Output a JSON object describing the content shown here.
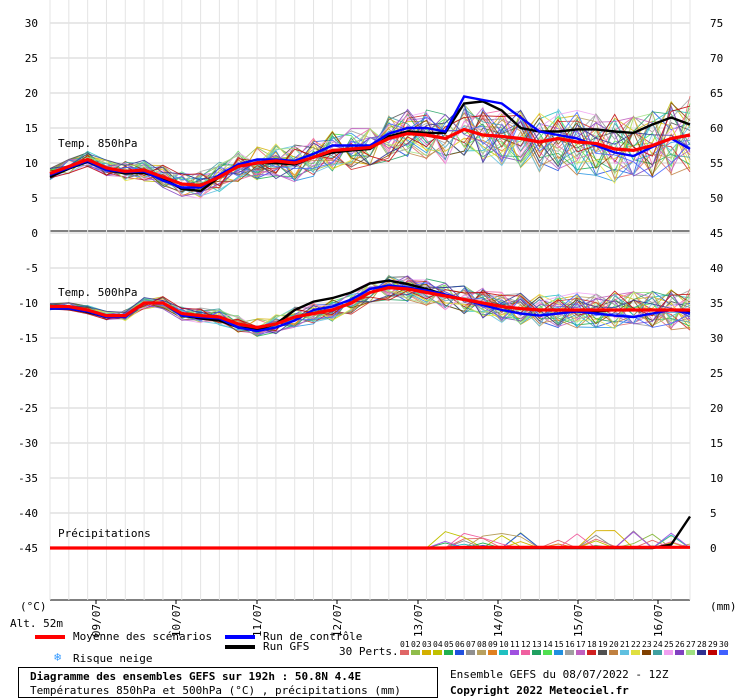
{
  "chart_data": [
    {
      "type": "line",
      "panel": "top",
      "label": "Temp. 850hPa",
      "left_axis_ticks": [
        "30",
        "25",
        "20",
        "15",
        "10",
        "5",
        "0"
      ],
      "right_axis_ticks": [
        "75",
        "70",
        "65",
        "60",
        "55",
        "50",
        "45"
      ],
      "ylim": [
        0,
        30
      ],
      "series": [
        {
          "name": "Moyenne des scénarios",
          "color": "#ff0000",
          "values": [
            8.5,
            9.5,
            10.5,
            9.3,
            8.8,
            9.0,
            8.0,
            7.0,
            6.8,
            8.0,
            9.5,
            10.0,
            10.3,
            10.0,
            10.8,
            11.8,
            12.0,
            12.2,
            13.5,
            14.2,
            14.0,
            13.5,
            14.8,
            14.0,
            13.8,
            13.5,
            13.0,
            13.5,
            13.0,
            12.8,
            12.0,
            11.8,
            12.5,
            13.5,
            14.0
          ]
        },
        {
          "name": "Run de contrôle",
          "color": "#0000ff",
          "values": [
            8.3,
            9.3,
            10.3,
            9.0,
            8.7,
            8.8,
            7.5,
            6.5,
            6.5,
            8.3,
            9.8,
            10.5,
            10.5,
            10.3,
            11.3,
            12.5,
            12.5,
            12.5,
            14.2,
            15.0,
            15.0,
            14.5,
            19.5,
            19.0,
            18.5,
            16.5,
            14.5,
            14.0,
            13.5,
            12.5,
            11.5,
            11.0,
            12.3,
            13.5,
            12.0
          ]
        },
        {
          "name": "Run GFS",
          "color": "#000000",
          "values": [
            8.0,
            9.2,
            10.2,
            9.0,
            8.5,
            8.6,
            7.8,
            6.3,
            6.0,
            8.0,
            9.5,
            10.0,
            10.0,
            9.8,
            10.8,
            11.5,
            11.8,
            12.0,
            13.8,
            14.5,
            14.3,
            14.3,
            18.5,
            18.8,
            17.5,
            15.0,
            14.5,
            14.5,
            14.8,
            14.8,
            14.5,
            14.3,
            15.5,
            16.5,
            15.5
          ]
        }
      ]
    },
    {
      "type": "line",
      "panel": "middle",
      "label": "Temp. 500hPa",
      "left_axis_ticks": [
        "-5",
        "-10",
        "-15",
        "-20",
        "-25",
        "-30",
        "-35",
        "-40",
        "-45"
      ],
      "right_axis_ticks": [
        "40",
        "35",
        "30",
        "25",
        "20",
        "15",
        "10",
        "5",
        "0"
      ],
      "series": [
        {
          "name": "Moyenne des scénarios",
          "color": "#ff0000",
          "values": [
            -10.5,
            -10.5,
            -11.0,
            -11.8,
            -11.8,
            -10.0,
            -10.0,
            -11.5,
            -11.8,
            -12.0,
            -13.0,
            -13.5,
            -13.0,
            -12.0,
            -11.5,
            -11.0,
            -10.0,
            -8.5,
            -7.8,
            -8.0,
            -8.5,
            -9.0,
            -9.5,
            -10.0,
            -10.5,
            -10.8,
            -11.0,
            -11.0,
            -11.0,
            -11.0,
            -11.0,
            -11.0,
            -11.0,
            -11.0,
            -11.0
          ]
        },
        {
          "name": "Run de contrôle",
          "color": "#0000ff",
          "values": [
            -10.8,
            -10.8,
            -11.2,
            -12.0,
            -12.0,
            -10.0,
            -10.0,
            -11.8,
            -12.0,
            -12.2,
            -13.5,
            -14.0,
            -13.5,
            -12.5,
            -11.0,
            -10.5,
            -9.5,
            -8.0,
            -7.5,
            -7.8,
            -8.2,
            -8.8,
            -9.5,
            -10.3,
            -11.0,
            -11.5,
            -11.8,
            -11.5,
            -11.2,
            -11.5,
            -11.8,
            -12.0,
            -11.5,
            -11.0,
            -11.5
          ]
        },
        {
          "name": "Run GFS",
          "color": "#000000",
          "values": [
            -10.8,
            -10.8,
            -11.3,
            -12.0,
            -11.8,
            -10.0,
            -10.0,
            -11.8,
            -12.2,
            -12.5,
            -13.5,
            -13.8,
            -13.0,
            -11.0,
            -9.8,
            -9.3,
            -8.5,
            -7.2,
            -6.8,
            -7.3,
            -8.0,
            -8.8,
            -9.5,
            -10.0,
            -10.5,
            -10.8,
            -11.0,
            -11.0,
            -11.0,
            -11.2,
            -11.0,
            -11.0,
            -11.0,
            -11.0,
            -11.2
          ]
        }
      ]
    },
    {
      "type": "line",
      "panel": "bottom",
      "label": "Précipitations",
      "unit": "mm",
      "series": [
        {
          "name": "Moyenne des scénarios",
          "color": "#ff0000",
          "values": [
            0,
            0,
            0,
            0,
            0,
            0,
            0,
            0,
            0,
            0,
            0,
            0,
            0,
            0,
            0,
            0,
            0,
            0,
            0,
            0,
            0,
            0,
            0.1,
            0.1,
            0.1,
            0.1,
            0.1,
            0.1,
            0.1,
            0.1,
            0.1,
            0.1,
            0.1,
            0.1,
            0.1
          ]
        },
        {
          "name": "Run GFS",
          "color": "#000000",
          "values": [
            0,
            0,
            0,
            0,
            0,
            0,
            0,
            0,
            0,
            0,
            0,
            0,
            0,
            0,
            0,
            0,
            0,
            0,
            0,
            0,
            0,
            0,
            0,
            0,
            0,
            0,
            0,
            0,
            0,
            0,
            0,
            0,
            0,
            0.5,
            4.5
          ]
        }
      ]
    }
  ],
  "axes": {
    "left_unit": "(°C)",
    "right_unit": "(mm)",
    "altitude": "Alt. 52m",
    "bottom_left_tick": "-45",
    "date_labels": [
      "09/07",
      "10/07",
      "11/07",
      "12/07",
      "13/07",
      "14/07",
      "15/07",
      "16/07"
    ]
  },
  "legend": {
    "mean": "Moyenne des scénarios",
    "control": "Run de contrôle",
    "gfs": "Run GFS",
    "snow": "Risque neige",
    "perts_label": "30 Perts.",
    "perts": [
      "01",
      "02",
      "03",
      "04",
      "05",
      "06",
      "07",
      "08",
      "09",
      "10",
      "11",
      "12",
      "13",
      "14",
      "15",
      "16",
      "17",
      "18",
      "19",
      "20",
      "21",
      "22",
      "23",
      "24",
      "25",
      "26",
      "27",
      "28",
      "29",
      "30"
    ],
    "pert_colors": [
      "#e06666",
      "#8fbc4a",
      "#d4b000",
      "#c0c000",
      "#20b050",
      "#2050e0",
      "#909090",
      "#b8a060",
      "#e08020",
      "#20c0c0",
      "#a050e0",
      "#f060a0",
      "#20a060",
      "#50e050",
      "#2090e0",
      "#a0a0a0",
      "#c060c0",
      "#d02020",
      "#505050",
      "#c08040",
      "#60c0e0",
      "#e0e040",
      "#804000",
      "#40a0a0",
      "#f0a0f0",
      "#8040c0",
      "#a0e080",
      "#303090",
      "#c00000",
      "#4060ff"
    ]
  },
  "footer": {
    "title": "Diagramme des ensembles GEFS sur 192h : 50.8N 4.4E",
    "subtitle": "Températures 850hPa et 500hPa (°C) , précipitations (mm)",
    "run": "Ensemble GEFS du 08/07/2022 - 12Z",
    "copyright": "Copyright 2022 Meteociel.fr"
  }
}
